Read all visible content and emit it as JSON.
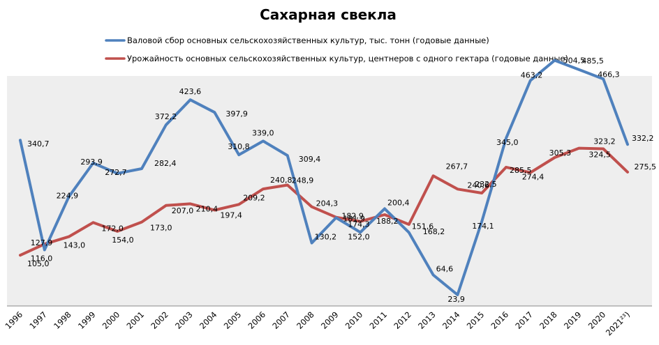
{
  "chart_data": {
    "type": "line",
    "title": "Сахарная свекла",
    "xlabel": "",
    "ylabel": "",
    "grid": false,
    "legend_position": "top",
    "plot_background": "#eeeeee",
    "categories": [
      "1996",
      "1997",
      "1998",
      "1999",
      "2000",
      "2001",
      "2002",
      "2003",
      "2004",
      "2005",
      "2006",
      "2007",
      "2008",
      "2009",
      "2010",
      "2011",
      "2012",
      "2013",
      "2014",
      "2015",
      "2016",
      "2017",
      "2018",
      "2019",
      "2020",
      "2021²³)"
    ],
    "series": [
      {
        "name": "Валовой сбор основных сельскохозяйственных культур, тыс. тонн (годовые данные)",
        "color": "#4f81bd",
        "values": [
          340.7,
          116.0,
          224.9,
          293.9,
          272.7,
          282.4,
          372.2,
          423.6,
          397.9,
          310.8,
          339.0,
          309.4,
          130.2,
          181.9,
          152.0,
          200.4,
          151.6,
          64.6,
          23.9,
          174.1,
          345.0,
          463.2,
          504.5,
          485.5,
          466.3,
          332.2
        ],
        "labels": [
          "340,7",
          "116,0",
          "224,9",
          "293,9",
          "272,7",
          "282,4",
          "372,2",
          "423,6",
          "397,9",
          "310,8",
          "339,0",
          "309,4",
          "130,2",
          "181,9",
          "152,0",
          "200,4",
          "151,6",
          "64,6",
          "23,9",
          "174,1",
          "345,0",
          "463,2",
          "504,5",
          "485,5",
          "466,3",
          "332,2"
        ]
      },
      {
        "name": "Урожайность основных сельскохозяйственных культур, центнеров с одного гектара (годовые данные)",
        "color": "#c0504d",
        "values": [
          105.0,
          127.9,
          143.0,
          172.0,
          154.0,
          173.0,
          207.0,
          210.4,
          197.4,
          209.2,
          240.8,
          248.9,
          204.3,
          182.9,
          174.3,
          188.2,
          168.2,
          267.7,
          240.6,
          232.5,
          285.5,
          274.4,
          305.3,
          324.5,
          323.2,
          275.5
        ],
        "labels": [
          "105,0",
          "127,9",
          "143,0",
          "172,0",
          "154,0",
          "173,0",
          "207,0",
          "210,4",
          "197,4",
          "209,2",
          "240,8",
          "248,9",
          "204,3",
          "182,9",
          "174,3",
          "188,2",
          "168,2",
          "267,7",
          "240,6",
          "232,5",
          "285,5",
          "274,4",
          "305,3",
          "324,5",
          "323,2",
          "275,5"
        ]
      }
    ]
  }
}
